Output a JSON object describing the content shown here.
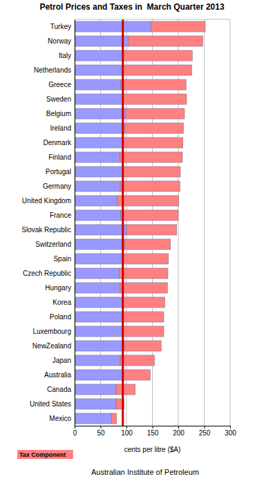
{
  "chart_data": {
    "type": "bar",
    "title": "Petrol Prices and Taxes in  March Quarter 2013",
    "x_label": "cents per litre ($A)",
    "source": "Australian Institute of Petroleum",
    "orientation": "horizontal",
    "stacked": true,
    "grid": true,
    "legend": "bottom-left",
    "categories": [
      "Turkey",
      "Norway",
      "Italy",
      "Netherlands",
      "Greece",
      "Sweden",
      "Belgium",
      "Ireland",
      "Denmark",
      "Finland",
      "Portugal",
      "Germany",
      "United Kingdom",
      "France",
      "Slovak Republic",
      "Switzerland",
      "Spain",
      "Czech Republic",
      "Hungary",
      "Korea",
      "Poland",
      "Luxembourg",
      "NewZealand",
      "Japan",
      "Australia",
      "Canada",
      "United States",
      "Mexico"
    ],
    "series": [
      {
        "name": null,
        "color": "#9999ff",
        "values": [
          147,
          103,
          93,
          93,
          89,
          93,
          98,
          96,
          93,
          87,
          93,
          88,
          82,
          89,
          100,
          96,
          93,
          86,
          88,
          93,
          91,
          91,
          95,
          88,
          93,
          80,
          80,
          71
        ]
      },
      {
        "name": "Tax Component",
        "color": "#ff8080",
        "values": [
          105,
          144,
          134,
          133,
          126,
          123,
          114,
          114,
          116,
          121,
          111,
          115,
          119,
          111,
          97,
          89,
          88,
          94,
          91,
          81,
          81,
          81,
          72,
          66,
          53,
          37,
          15,
          10
        ]
      }
    ],
    "reference_line": 93,
    "xlim": [
      0,
      300
    ],
    "xticks": [
      0,
      50,
      100,
      150,
      200,
      250,
      300
    ]
  }
}
